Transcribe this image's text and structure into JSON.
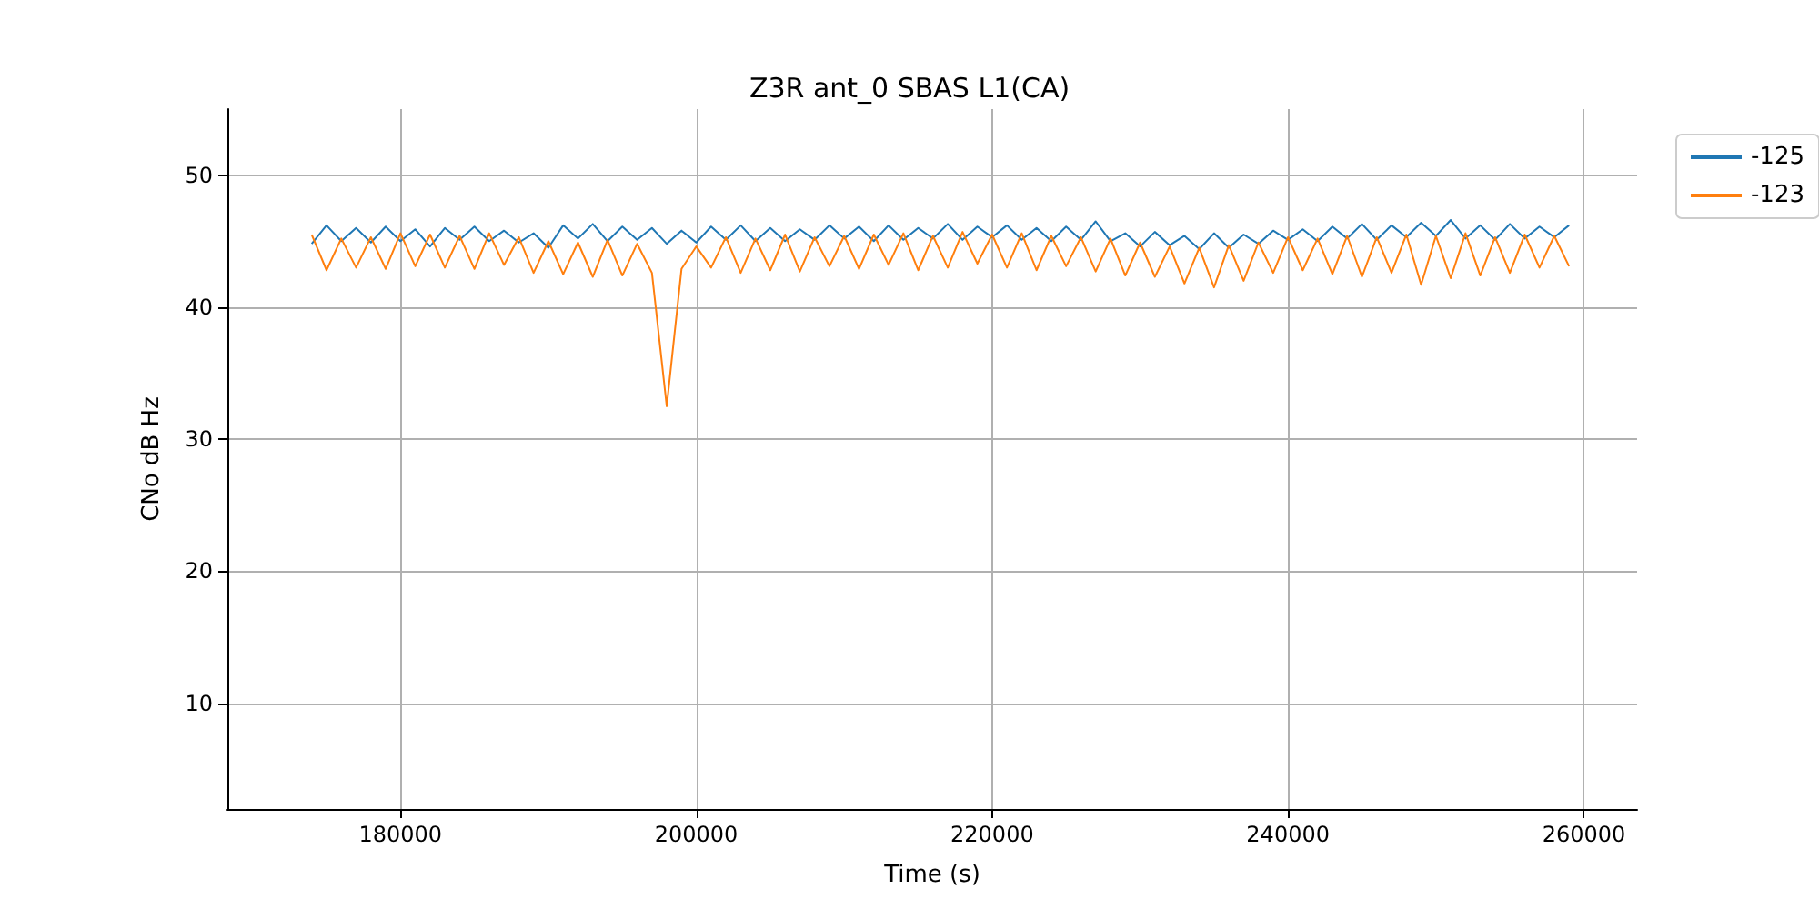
{
  "chart_data": {
    "type": "line",
    "title": "Z3R ant_0 SBAS L1(CA)",
    "xlabel": "Time (s)",
    "ylabel": "CNo dB Hz",
    "x": [
      174000,
      175000,
      176000,
      177000,
      178000,
      179000,
      180000,
      181000,
      182000,
      183000,
      184000,
      185000,
      186000,
      187000,
      188000,
      189000,
      190000,
      191000,
      192000,
      193000,
      194000,
      195000,
      196000,
      197000,
      198000,
      199000,
      200000,
      201000,
      202000,
      203000,
      204000,
      205000,
      206000,
      207000,
      208000,
      209000,
      210000,
      211000,
      212000,
      213000,
      214000,
      215000,
      216000,
      217000,
      218000,
      219000,
      220000,
      221000,
      222000,
      223000,
      224000,
      225000,
      226000,
      227000,
      228000,
      229000,
      230000,
      231000,
      232000,
      233000,
      234000,
      235000,
      236000,
      237000,
      238000,
      239000,
      240000,
      241000,
      242000,
      243000,
      244000,
      245000,
      246000,
      247000,
      248000,
      249000,
      250000,
      251000,
      252000,
      253000,
      254000,
      255000,
      256000,
      257000,
      258000,
      259000
    ],
    "series": [
      {
        "name": "-125",
        "color": "#1f77b4",
        "values": [
          44.8,
          46.2,
          45.0,
          46.0,
          44.9,
          46.1,
          45.0,
          45.9,
          44.6,
          46.0,
          45.1,
          46.1,
          45.0,
          45.8,
          44.9,
          45.6,
          44.5,
          46.2,
          45.2,
          46.3,
          45.0,
          46.1,
          45.1,
          46.0,
          44.8,
          45.8,
          44.9,
          46.1,
          45.1,
          46.2,
          45.0,
          46.0,
          45.0,
          45.9,
          45.1,
          46.2,
          45.2,
          46.1,
          45.0,
          46.2,
          45.1,
          46.0,
          45.2,
          46.3,
          45.1,
          46.1,
          45.3,
          46.2,
          45.1,
          46.0,
          45.0,
          46.1,
          45.1,
          46.5,
          45.0,
          45.6,
          44.6,
          45.7,
          44.7,
          45.4,
          44.4,
          45.6,
          44.5,
          45.5,
          44.8,
          45.8,
          45.1,
          45.9,
          45.0,
          46.1,
          45.2,
          46.3,
          45.1,
          46.2,
          45.3,
          46.4,
          45.4,
          46.6,
          45.2,
          46.2,
          45.1,
          46.3,
          45.2,
          46.1,
          45.3,
          46.2
        ]
      },
      {
        "name": "-123",
        "color": "#ff7f0e",
        "values": [
          45.5,
          42.8,
          45.2,
          43.0,
          45.3,
          42.9,
          45.6,
          43.1,
          45.5,
          43.0,
          45.4,
          42.9,
          45.6,
          43.2,
          45.3,
          42.6,
          45.0,
          42.5,
          44.9,
          42.3,
          45.1,
          42.4,
          44.8,
          42.6,
          32.5,
          42.9,
          44.6,
          43.0,
          45.3,
          42.6,
          45.2,
          42.8,
          45.5,
          42.7,
          45.3,
          43.1,
          45.4,
          42.9,
          45.5,
          43.2,
          45.6,
          42.8,
          45.4,
          43.0,
          45.7,
          43.3,
          45.5,
          43.0,
          45.6,
          42.8,
          45.4,
          43.1,
          45.3,
          42.7,
          45.2,
          42.4,
          44.9,
          42.3,
          44.6,
          41.8,
          44.5,
          41.5,
          44.7,
          42.0,
          44.9,
          42.6,
          45.3,
          42.8,
          45.2,
          42.5,
          45.4,
          42.3,
          45.3,
          42.6,
          45.5,
          41.7,
          45.4,
          42.2,
          45.6,
          42.4,
          45.3,
          42.6,
          45.5,
          43.0,
          45.4,
          43.1
        ]
      }
    ],
    "xlim": [
      168300,
      263600
    ],
    "xticks": [
      180000,
      200000,
      220000,
      240000,
      260000
    ],
    "ylim": [
      2,
      55
    ],
    "yticks": [
      10,
      20,
      30,
      40,
      50
    ],
    "grid": true,
    "legend": "top right",
    "line_style": "solid"
  }
}
